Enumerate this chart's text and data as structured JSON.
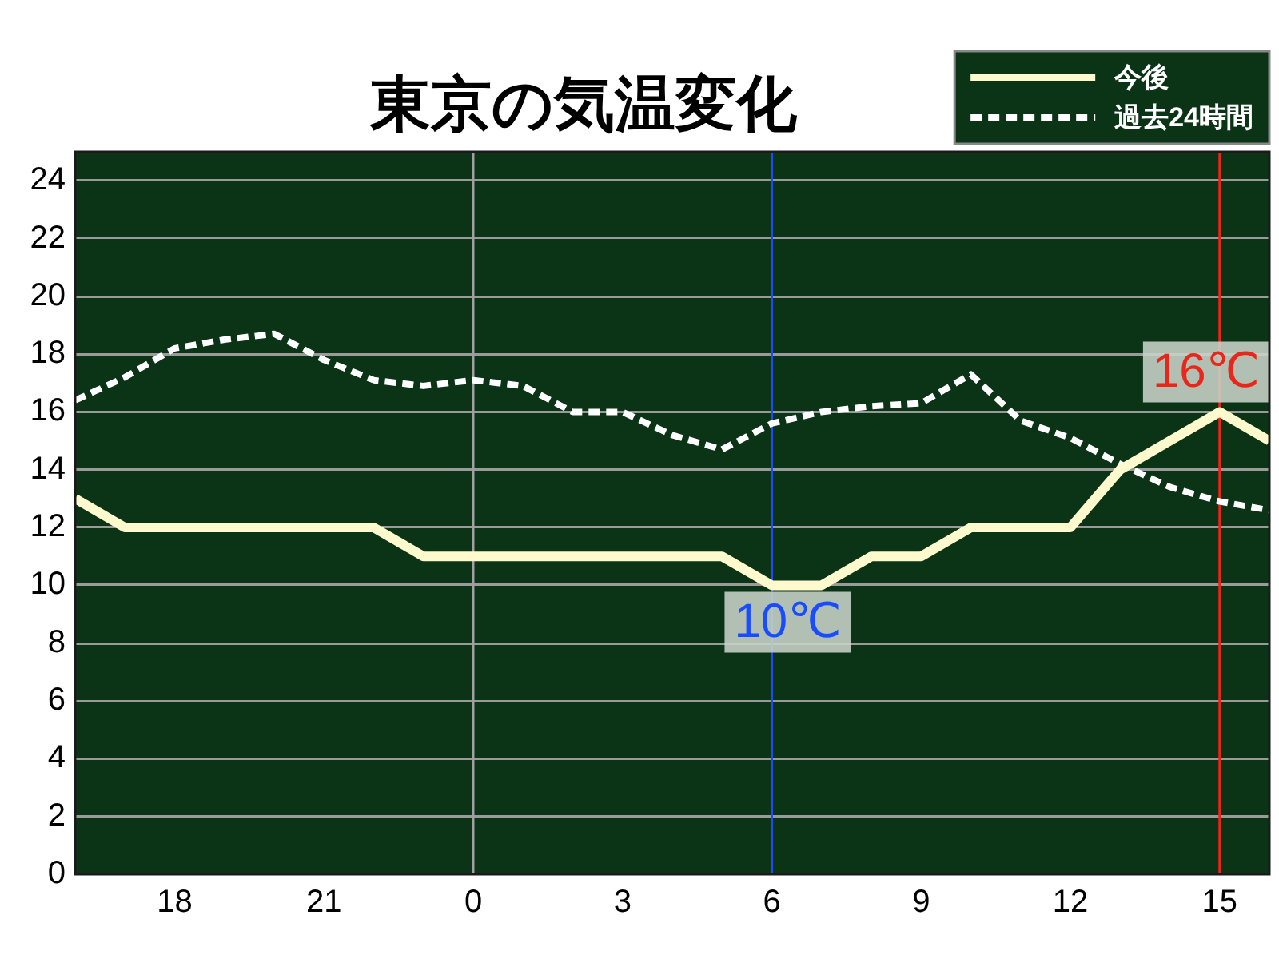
{
  "chart_data": {
    "type": "line",
    "title": "東京の気温変化",
    "categories": [
      null,
      null,
      "18",
      null,
      null,
      "21",
      null,
      null,
      "0",
      null,
      null,
      "3",
      null,
      null,
      "6",
      null,
      null,
      "9",
      null,
      null,
      "12",
      null,
      null,
      "15",
      null
    ],
    "series": [
      {
        "name": "今後",
        "color": "#fffacd",
        "line_style": "solid",
        "values": [
          13,
          12,
          12,
          12,
          12,
          12,
          12,
          11,
          11,
          11,
          11,
          11,
          11,
          11,
          10,
          10,
          11,
          11,
          12,
          12,
          12,
          14,
          15,
          16,
          15
        ]
      },
      {
        "name": "過去24時間",
        "color": "#ffffff",
        "line_style": "dashed",
        "values": [
          16.4,
          17.2,
          18.2,
          18.5,
          18.7,
          17.8,
          17.1,
          16.9,
          17.1,
          16.9,
          16.0,
          16.0,
          15.2,
          14.7,
          15.6,
          16.0,
          16.2,
          16.3,
          17.3,
          15.7,
          15.1,
          14.2,
          13.4,
          12.9,
          12.6
        ]
      }
    ],
    "ylim": [
      0,
      25
    ],
    "yticks": [
      0,
      2,
      4,
      6,
      8,
      10,
      12,
      14,
      16,
      18,
      20,
      22,
      24
    ],
    "grid": "y",
    "legend": "top right",
    "marker": "none",
    "ref_lines": [
      {
        "axis": "x",
        "value": "0",
        "color": "#a0a0a0"
      },
      {
        "axis": "x",
        "value": "6",
        "color": "#1a4cff"
      },
      {
        "axis": "x",
        "value": "15",
        "color": "#e8261a"
      }
    ],
    "annotations": [
      {
        "text": "10℃",
        "x": "6",
        "y": 10
      },
      {
        "text": "16℃",
        "x": "15",
        "y": 16
      }
    ]
  }
}
